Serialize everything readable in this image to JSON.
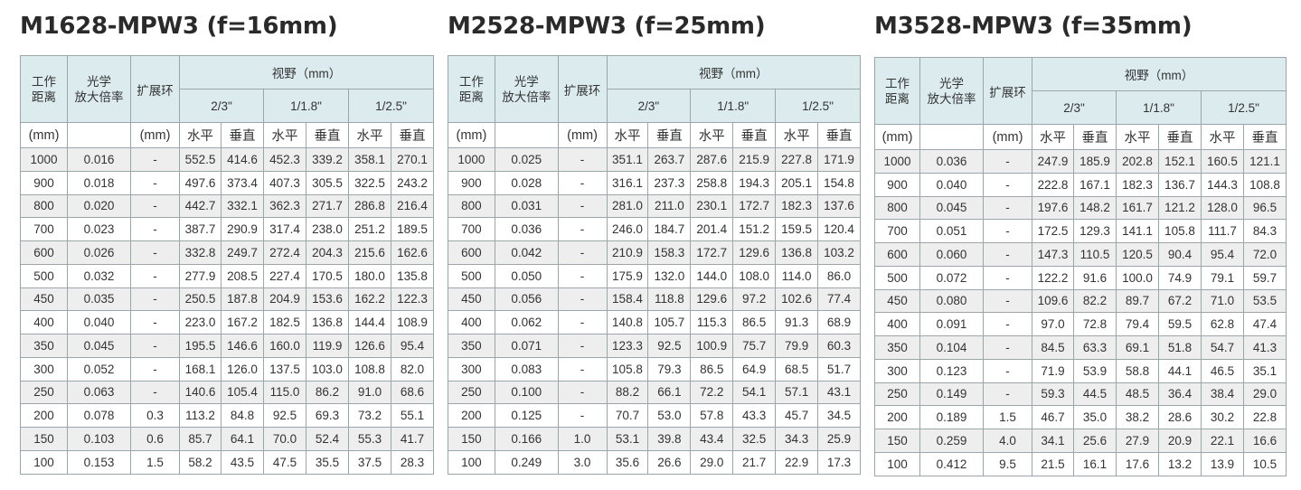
{
  "headers": {
    "working_distance": "工作\n距离",
    "magnification": "光学\n放大倍率",
    "extension_ring": "扩展环",
    "field_of_view": "视野（mm）",
    "sensors": [
      "2/3\"",
      "1/1.8\"",
      "1/2.5\""
    ],
    "unit_mm": "(mm)",
    "unit_ring": "(mm)",
    "horizontal": "水平",
    "vertical": "垂直"
  },
  "tables": [
    {
      "title": "M1628-MPW3 (f=16mm)",
      "rows": [
        [
          "1000",
          "0.016",
          "-",
          "552.5",
          "414.6",
          "452.3",
          "339.2",
          "358.1",
          "270.1"
        ],
        [
          "900",
          "0.018",
          "-",
          "497.6",
          "373.4",
          "407.3",
          "305.5",
          "322.5",
          "243.2"
        ],
        [
          "800",
          "0.020",
          "-",
          "442.7",
          "332.1",
          "362.3",
          "271.7",
          "286.8",
          "216.4"
        ],
        [
          "700",
          "0.023",
          "-",
          "387.7",
          "290.9",
          "317.4",
          "238.0",
          "251.2",
          "189.5"
        ],
        [
          "600",
          "0.026",
          "-",
          "332.8",
          "249.7",
          "272.4",
          "204.3",
          "215.6",
          "162.6"
        ],
        [
          "500",
          "0.032",
          "-",
          "277.9",
          "208.5",
          "227.4",
          "170.5",
          "180.0",
          "135.8"
        ],
        [
          "450",
          "0.035",
          "-",
          "250.5",
          "187.8",
          "204.9",
          "153.6",
          "162.2",
          "122.3"
        ],
        [
          "400",
          "0.040",
          "-",
          "223.0",
          "167.2",
          "182.5",
          "136.8",
          "144.4",
          "108.9"
        ],
        [
          "350",
          "0.045",
          "-",
          "195.5",
          "146.6",
          "160.0",
          "119.9",
          "126.6",
          "95.4"
        ],
        [
          "300",
          "0.052",
          "-",
          "168.1",
          "126.0",
          "137.5",
          "103.0",
          "108.8",
          "82.0"
        ],
        [
          "250",
          "0.063",
          "-",
          "140.6",
          "105.4",
          "115.0",
          "86.2",
          "91.0",
          "68.6"
        ],
        [
          "200",
          "0.078",
          "0.3",
          "113.2",
          "84.8",
          "92.5",
          "69.3",
          "73.2",
          "55.1"
        ],
        [
          "150",
          "0.103",
          "0.6",
          "85.7",
          "64.1",
          "70.0",
          "52.4",
          "55.3",
          "41.7"
        ],
        [
          "100",
          "0.153",
          "1.5",
          "58.2",
          "43.5",
          "47.5",
          "35.5",
          "37.5",
          "28.3"
        ]
      ]
    },
    {
      "title": "M2528-MPW3 (f=25mm)",
      "rows": [
        [
          "1000",
          "0.025",
          "-",
          "351.1",
          "263.7",
          "287.6",
          "215.9",
          "227.8",
          "171.9"
        ],
        [
          "900",
          "0.028",
          "-",
          "316.1",
          "237.3",
          "258.8",
          "194.3",
          "205.1",
          "154.8"
        ],
        [
          "800",
          "0.031",
          "-",
          "281.0",
          "211.0",
          "230.1",
          "172.7",
          "182.3",
          "137.6"
        ],
        [
          "700",
          "0.036",
          "-",
          "246.0",
          "184.7",
          "201.4",
          "151.2",
          "159.5",
          "120.4"
        ],
        [
          "600",
          "0.042",
          "-",
          "210.9",
          "158.3",
          "172.7",
          "129.6",
          "136.8",
          "103.2"
        ],
        [
          "500",
          "0.050",
          "-",
          "175.9",
          "132.0",
          "144.0",
          "108.0",
          "114.0",
          "86.0"
        ],
        [
          "450",
          "0.056",
          "-",
          "158.4",
          "118.8",
          "129.6",
          "97.2",
          "102.6",
          "77.4"
        ],
        [
          "400",
          "0.062",
          "-",
          "140.8",
          "105.7",
          "115.3",
          "86.5",
          "91.3",
          "68.9"
        ],
        [
          "350",
          "0.071",
          "-",
          "123.3",
          "92.5",
          "100.9",
          "75.7",
          "79.9",
          "60.3"
        ],
        [
          "300",
          "0.083",
          "-",
          "105.8",
          "79.3",
          "86.5",
          "64.9",
          "68.5",
          "51.7"
        ],
        [
          "250",
          "0.100",
          "-",
          "88.2",
          "66.1",
          "72.2",
          "54.1",
          "57.1",
          "43.1"
        ],
        [
          "200",
          "0.125",
          "-",
          "70.7",
          "53.0",
          "57.8",
          "43.3",
          "45.7",
          "34.5"
        ],
        [
          "150",
          "0.166",
          "1.0",
          "53.1",
          "39.8",
          "43.4",
          "32.5",
          "34.3",
          "25.9"
        ],
        [
          "100",
          "0.249",
          "3.0",
          "35.6",
          "26.6",
          "29.0",
          "21.7",
          "22.9",
          "17.3"
        ]
      ]
    },
    {
      "title": "M3528-MPW3 (f=35mm)",
      "rows": [
        [
          "1000",
          "0.036",
          "-",
          "247.9",
          "185.9",
          "202.8",
          "152.1",
          "160.5",
          "121.1"
        ],
        [
          "900",
          "0.040",
          "-",
          "222.8",
          "167.1",
          "182.3",
          "136.7",
          "144.3",
          "108.8"
        ],
        [
          "800",
          "0.045",
          "-",
          "197.6",
          "148.2",
          "161.7",
          "121.2",
          "128.0",
          "96.5"
        ],
        [
          "700",
          "0.051",
          "-",
          "172.5",
          "129.3",
          "141.1",
          "105.8",
          "111.7",
          "84.3"
        ],
        [
          "600",
          "0.060",
          "-",
          "147.3",
          "110.5",
          "120.5",
          "90.4",
          "95.4",
          "72.0"
        ],
        [
          "500",
          "0.072",
          "-",
          "122.2",
          "91.6",
          "100.0",
          "74.9",
          "79.1",
          "59.7"
        ],
        [
          "450",
          "0.080",
          "-",
          "109.6",
          "82.2",
          "89.7",
          "67.2",
          "71.0",
          "53.5"
        ],
        [
          "400",
          "0.091",
          "-",
          "97.0",
          "72.8",
          "79.4",
          "59.5",
          "62.8",
          "47.4"
        ],
        [
          "350",
          "0.104",
          "-",
          "84.5",
          "63.3",
          "69.1",
          "51.8",
          "54.7",
          "41.3"
        ],
        [
          "300",
          "0.123",
          "-",
          "71.9",
          "53.9",
          "58.8",
          "44.1",
          "46.5",
          "35.1"
        ],
        [
          "250",
          "0.149",
          "-",
          "59.3",
          "44.5",
          "48.5",
          "36.4",
          "38.4",
          "29.0"
        ],
        [
          "200",
          "0.189",
          "1.5",
          "46.7",
          "35.0",
          "38.2",
          "28.6",
          "30.2",
          "22.8"
        ],
        [
          "150",
          "0.259",
          "4.0",
          "34.1",
          "25.6",
          "27.9",
          "20.9",
          "22.1",
          "16.6"
        ],
        [
          "100",
          "0.412",
          "9.5",
          "21.5",
          "16.1",
          "17.6",
          "13.2",
          "13.9",
          "10.5"
        ]
      ]
    }
  ]
}
